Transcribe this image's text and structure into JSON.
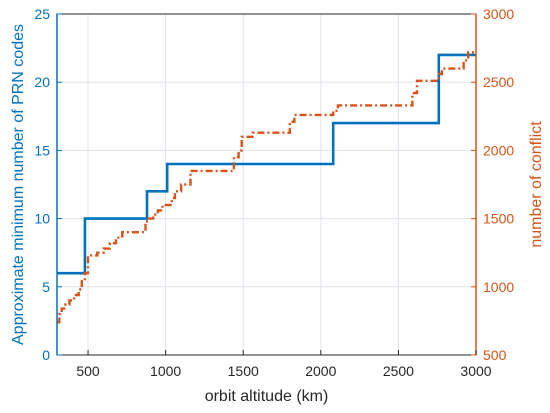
{
  "chart_data": {
    "type": "line",
    "title": "",
    "xlabel": "orbit altitude (km)",
    "ylabel_left": "Approximate minimum number of PRN codes",
    "ylabel_right": "number of conflict",
    "xlim": [
      300,
      3000
    ],
    "ylim_left": [
      0,
      25
    ],
    "ylim_right": [
      500,
      3000
    ],
    "xticks": [
      500,
      1000,
      1500,
      2000,
      2500,
      3000
    ],
    "yticks_left": [
      0,
      5,
      10,
      15,
      20,
      25
    ],
    "yticks_right": [
      500,
      1000,
      1500,
      2000,
      2500,
      3000
    ],
    "grid": true,
    "colors": {
      "left_axis": "#0072BD",
      "right_axis": "#D95319",
      "grid": "#dfe3ea",
      "frame": "#262626"
    },
    "series": [
      {
        "axis": "left",
        "style": "solid-step",
        "x": [
          300,
          480,
          480,
          880,
          880,
          1010,
          1010,
          2080,
          2080,
          2760,
          2760,
          3000
        ],
        "y": [
          6,
          6,
          10,
          10,
          12,
          12,
          14,
          14,
          17,
          17,
          22,
          22
        ]
      },
      {
        "axis": "right",
        "style": "dash-dot-step",
        "x": [
          300,
          315,
          315,
          330,
          330,
          355,
          355,
          380,
          380,
          410,
          410,
          440,
          440,
          460,
          460,
          480,
          480,
          500,
          500,
          560,
          560,
          600,
          600,
          640,
          640,
          680,
          680,
          720,
          720,
          870,
          870,
          890,
          890,
          920,
          920,
          950,
          950,
          980,
          980,
          1040,
          1040,
          1060,
          1060,
          1100,
          1100,
          1160,
          1160,
          1440,
          1440,
          1470,
          1470,
          1490,
          1490,
          1560,
          1560,
          1590,
          1590,
          1800,
          1800,
          1830,
          1830,
          2080,
          2080,
          2110,
          2110,
          2590,
          2590,
          2620,
          2620,
          2760,
          2760,
          2780,
          2780,
          2920,
          2920,
          2950,
          2950,
          3000
        ],
        "y": [
          740,
          740,
          800,
          800,
          840,
          840,
          870,
          870,
          900,
          900,
          940,
          940,
          980,
          980,
          1040,
          1040,
          1100,
          1100,
          1230,
          1230,
          1250,
          1250,
          1280,
          1280,
          1320,
          1320,
          1360,
          1360,
          1400,
          1400,
          1480,
          1480,
          1500,
          1500,
          1530,
          1530,
          1560,
          1560,
          1600,
          1600,
          1650,
          1650,
          1700,
          1700,
          1750,
          1750,
          1850,
          1850,
          1950,
          1950,
          2000,
          2000,
          2100,
          2100,
          2130,
          2130,
          2130,
          2130,
          2210,
          2210,
          2260,
          2260,
          2290,
          2290,
          2330,
          2330,
          2420,
          2420,
          2510,
          2510,
          2560,
          2560,
          2600,
          2600,
          2660,
          2660,
          2720,
          2720
        ]
      }
    ]
  }
}
